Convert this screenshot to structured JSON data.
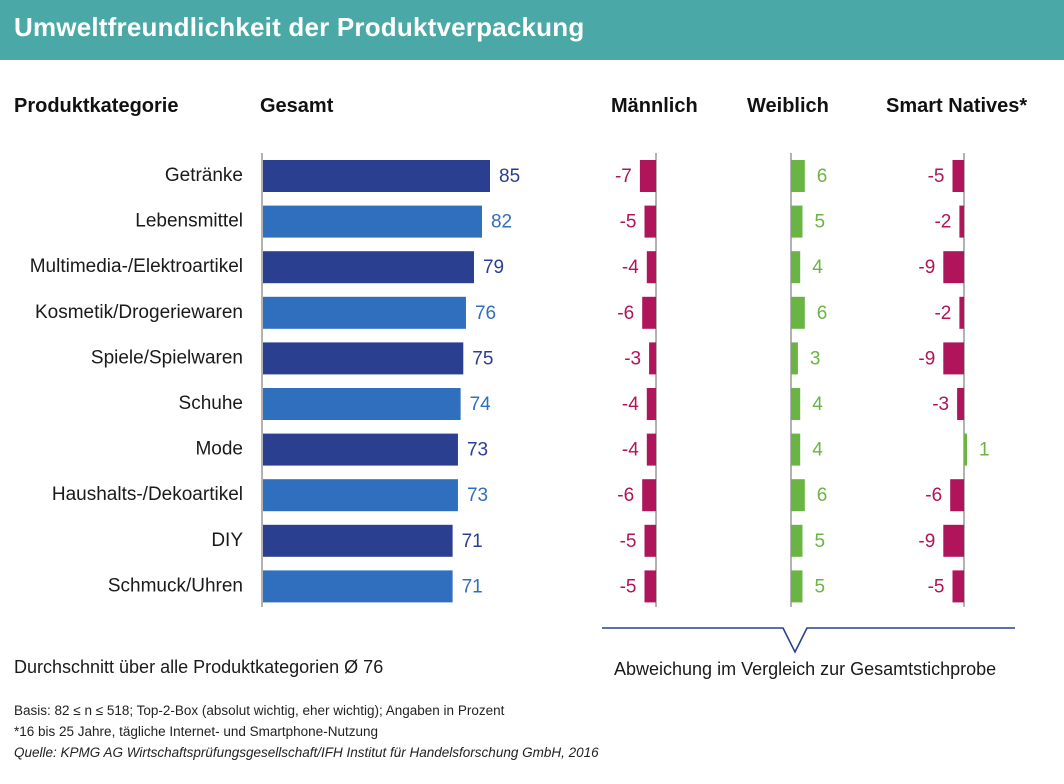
{
  "header": {
    "title": "Umweltfreundlichkeit der Produktverpackung"
  },
  "columns": {
    "category": "Produktkategorie",
    "total": "Gesamt",
    "male": "Männlich",
    "female": "Weiblich",
    "smart": "Smart Natives*"
  },
  "colors": {
    "header_bg": "#4aa9a6",
    "bar_dark": "#2b3f91",
    "bar_light": "#2f6fbe",
    "label_dark": "#2b3f91",
    "label_light": "#2f6fbe",
    "negative": "#b0145a",
    "positive": "#6ab444",
    "axis": "#999999",
    "brace": "#2b3f91"
  },
  "chart_data": {
    "type": "bar",
    "title": "Umweltfreundlichkeit der Produktverpackung",
    "categories": [
      "Getränke",
      "Lebensmittel",
      "Multimedia-/Elektroartikel",
      "Kosmetik/Drogeriewaren",
      "Spiele/Spielwaren",
      "Schuhe",
      "Mode",
      "Haushalts-/Dekoartikel",
      "DIY",
      "Schmuck/Uhren"
    ],
    "series": [
      {
        "name": "Gesamt",
        "values": [
          85,
          82,
          79,
          76,
          75,
          74,
          73,
          73,
          71,
          71
        ]
      },
      {
        "name": "Männlich",
        "values": [
          -7,
          -5,
          -4,
          -6,
          -3,
          -4,
          -4,
          -6,
          -5,
          -5
        ]
      },
      {
        "name": "Weiblich",
        "values": [
          6,
          5,
          4,
          6,
          3,
          4,
          4,
          6,
          5,
          5
        ]
      },
      {
        "name": "Smart Natives*",
        "values": [
          -5,
          -2,
          -9,
          -2,
          -9,
          -3,
          1,
          -6,
          -9,
          -5
        ]
      }
    ],
    "xlabel": "",
    "ylabel": "Angaben in Prozent",
    "total_range": [
      0,
      85
    ],
    "deviation_label": "Abweichung im Vergleich zur Gesamtstichprobe"
  },
  "footer": {
    "average": "Durchschnitt über alle Produktkategorien Ø 76",
    "deviation": "Abweichung im Vergleich zur Gesamtstichprobe"
  },
  "notes": {
    "basis": "Basis: 82 ≤ n ≤ 518; Top-2-Box (absolut wichtig, eher wichtig); Angaben in Prozent",
    "footnote": "*16 bis 25 Jahre, tägliche Internet- und Smartphone-Nutzung",
    "source": "Quelle: KPMG AG Wirtschaftsprüfungsgesellschaft/IFH Institut für Handelsforschung GmbH, 2016"
  }
}
